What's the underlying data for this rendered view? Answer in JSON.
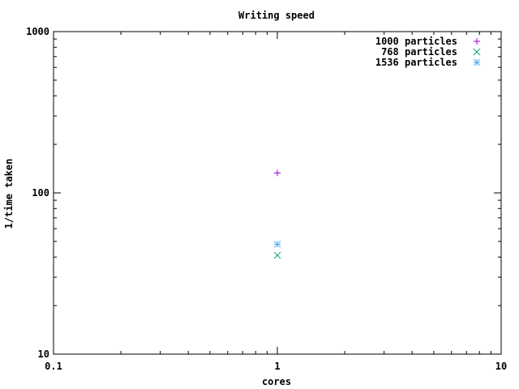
{
  "chart_data": {
    "type": "scatter",
    "title": "Writing speed",
    "xlabel": "cores",
    "ylabel": "1/time taken",
    "xscale": "log",
    "yscale": "log",
    "xlim": [
      0.1,
      10
    ],
    "ylim": [
      10,
      1000
    ],
    "x_ticks": [
      {
        "value": 0.1,
        "label": "0.1"
      },
      {
        "value": 1,
        "label": "1"
      },
      {
        "value": 10,
        "label": "10"
      }
    ],
    "y_ticks": [
      {
        "value": 10,
        "label": "10"
      },
      {
        "value": 100,
        "label": "100"
      },
      {
        "value": 1000,
        "label": "1000"
      }
    ],
    "grid": false,
    "legend_position": "top-right",
    "series": [
      {
        "name": "1000 particles",
        "marker": "plus",
        "color": "#9400d3",
        "points": [
          {
            "x": 1,
            "y": 133
          }
        ]
      },
      {
        "name": "768 particles",
        "marker": "cross",
        "color": "#009e73",
        "points": [
          {
            "x": 1,
            "y": 41
          }
        ]
      },
      {
        "name": "1536 particles",
        "marker": "star",
        "color": "#56b4e9",
        "points": [
          {
            "x": 1,
            "y": 48
          }
        ]
      }
    ]
  }
}
